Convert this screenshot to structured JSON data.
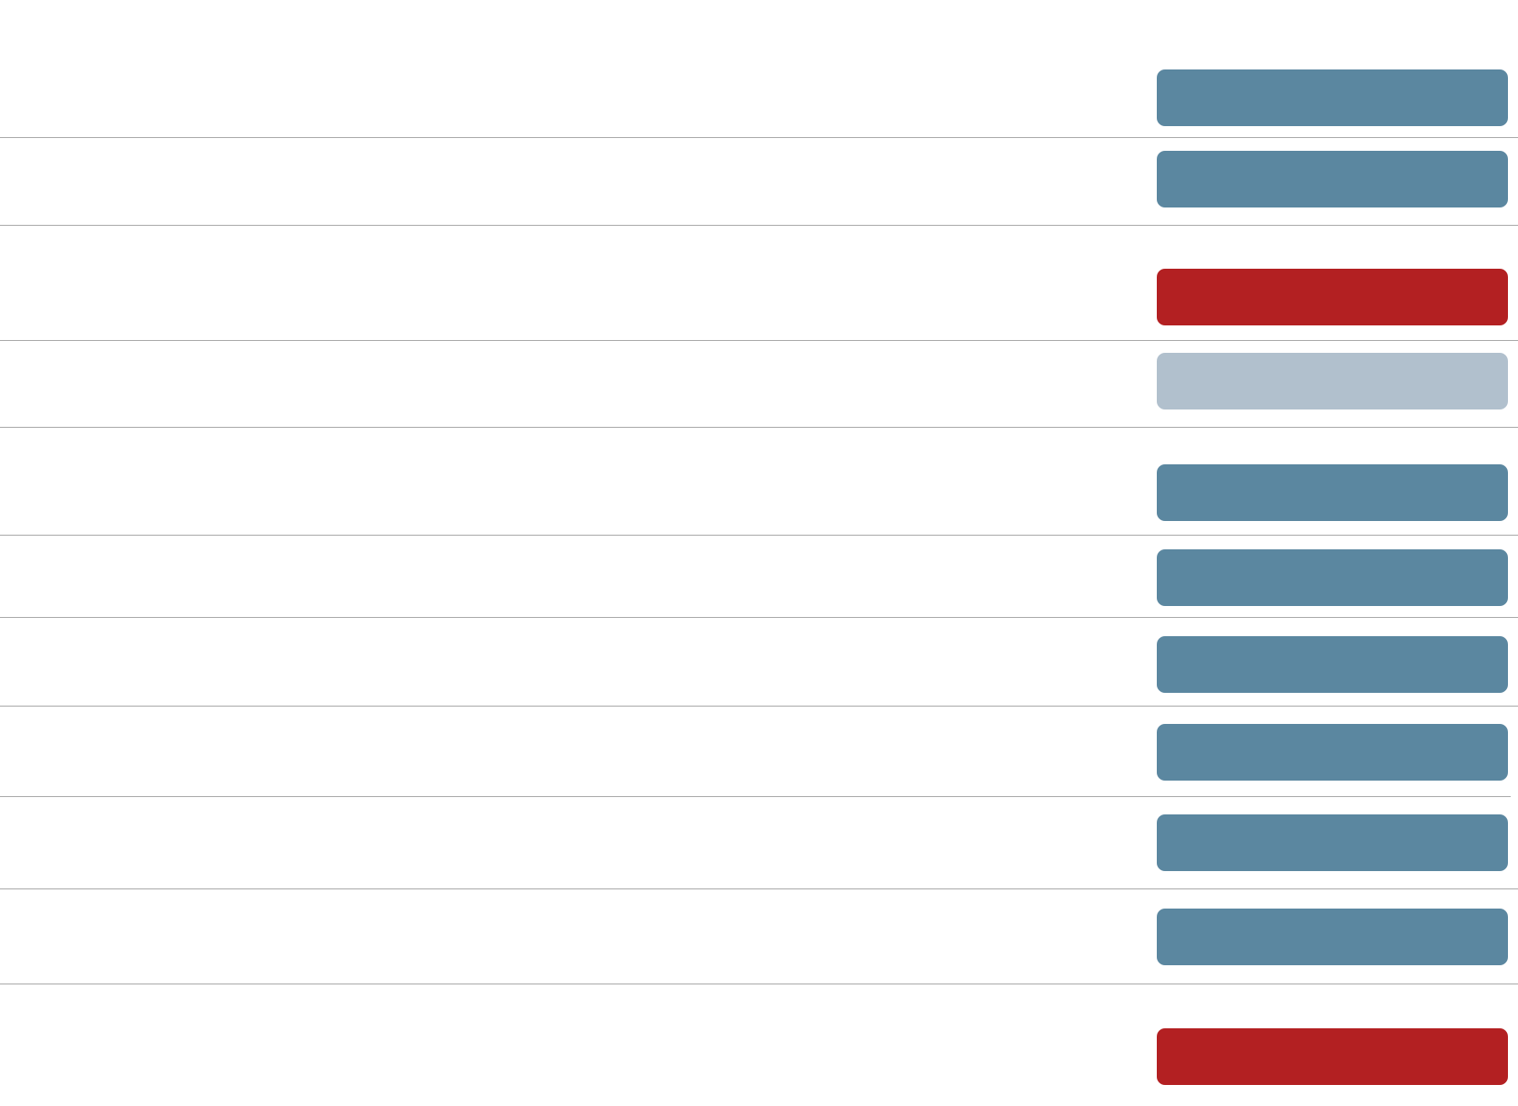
{
  "rows": [
    {
      "button": {
        "color": "#5b87a0",
        "enabled": true
      }
    },
    {
      "button": {
        "color": "#5b87a0",
        "enabled": true
      }
    },
    {
      "button": {
        "color": "#b32022",
        "enabled": true
      }
    },
    {
      "button": {
        "color": "#b1c0cd",
        "enabled": false
      }
    },
    {
      "button": {
        "color": "#5b87a0",
        "enabled": true
      }
    },
    {
      "button": {
        "color": "#5b87a0",
        "enabled": true
      }
    },
    {
      "button": {
        "color": "#5b87a0",
        "enabled": true
      }
    },
    {
      "button": {
        "color": "#5b87a0",
        "enabled": true
      }
    },
    {
      "button": {
        "color": "#5b87a0",
        "enabled": true
      }
    },
    {
      "button": {
        "color": "#5b87a0",
        "enabled": true
      }
    },
    {
      "button": {
        "color": "#b32022",
        "enabled": true
      }
    }
  ]
}
